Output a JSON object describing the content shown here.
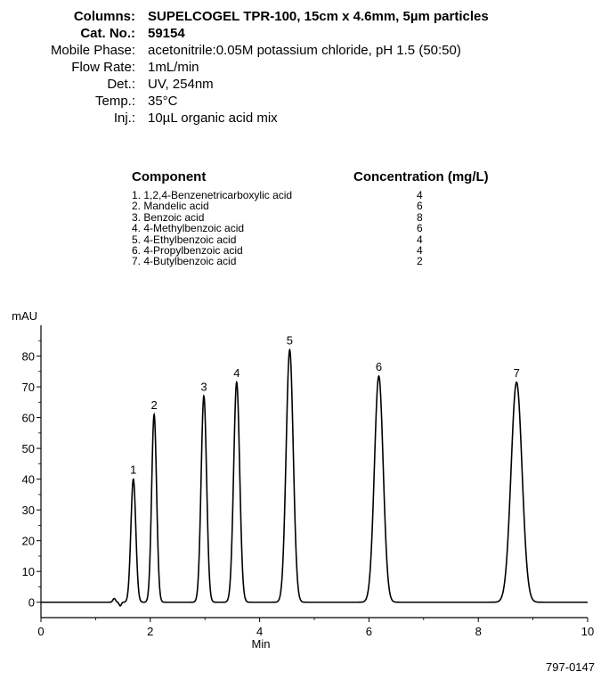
{
  "header": {
    "rows": [
      {
        "key": "Columns:",
        "value": "SUPELCOGEL TPR-100, 15cm x 4.6mm, 5µm particles",
        "bold": true
      },
      {
        "key": "Cat. No.:",
        "value": "59154",
        "bold": true
      },
      {
        "key": "Mobile Phase:",
        "value": "acetonitrile:0.05M potassium chloride, pH 1.5 (50:50)",
        "bold": false
      },
      {
        "key": "Flow Rate:",
        "value": "1mL/min",
        "bold": false
      },
      {
        "key": "Det.:",
        "value": "UV, 254nm",
        "bold": false
      },
      {
        "key": "Temp.:",
        "value": "35°C",
        "bold": false
      },
      {
        "key": "Inj.:",
        "value": "10µL organic acid mix",
        "bold": false
      }
    ]
  },
  "components": {
    "col_component": "Component",
    "col_concentration": "Concentration (mg/L)",
    "items": [
      {
        "name": "1. 1,2,4-Benzenetricarboxylic acid",
        "conc": "4"
      },
      {
        "name": "2. Mandelic acid",
        "conc": "6"
      },
      {
        "name": "3. Benzoic acid",
        "conc": "8"
      },
      {
        "name": "4. 4-Methylbenzoic acid",
        "conc": "6"
      },
      {
        "name": "5. 4-Ethylbenzoic acid",
        "conc": "4"
      },
      {
        "name": "6. 4-Propylbenzoic acid",
        "conc": "4"
      },
      {
        "name": "7. 4-Butylbenzoic acid",
        "conc": "2"
      }
    ]
  },
  "chart_data": {
    "type": "line",
    "title": "",
    "xlabel": "Min",
    "ylabel": "mAU",
    "xlim": [
      0,
      10
    ],
    "ylim": [
      -5,
      90
    ],
    "xticks": [
      0,
      2,
      4,
      6,
      8,
      10
    ],
    "yticks": [
      0,
      10,
      20,
      30,
      40,
      50,
      60,
      70,
      80
    ],
    "grid": false,
    "line_color": "#000000",
    "baseline": 0,
    "peaks": [
      {
        "label": "1",
        "x": 1.69,
        "y": 40,
        "width": 0.045
      },
      {
        "label": "2",
        "x": 2.07,
        "y": 61,
        "width": 0.045
      },
      {
        "label": "3",
        "x": 2.98,
        "y": 67,
        "width": 0.05
      },
      {
        "label": "4",
        "x": 3.58,
        "y": 71.5,
        "width": 0.055
      },
      {
        "label": "5",
        "x": 4.55,
        "y": 82,
        "width": 0.065
      },
      {
        "label": "6",
        "x": 6.18,
        "y": 73.5,
        "width": 0.08
      },
      {
        "label": "7",
        "x": 8.7,
        "y": 71.5,
        "width": 0.1
      }
    ],
    "disturbance": [
      {
        "x": 1.34,
        "y": 1.2,
        "width": 0.025
      },
      {
        "x": 1.45,
        "y": -1.2,
        "width": 0.02
      }
    ]
  },
  "footer": {
    "code": "797-0147"
  }
}
